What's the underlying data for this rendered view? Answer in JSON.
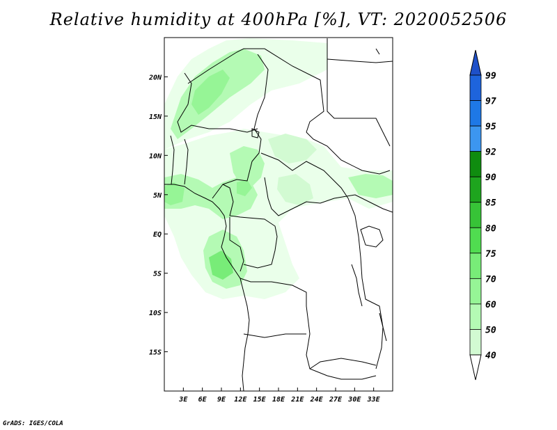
{
  "title": "Relative humidity at 400hPa [%], VT: 2020052506",
  "credit": "GrADS: IGES/COLA",
  "map": {
    "lon_range": [
      0,
      36
    ],
    "lat_range": [
      -20,
      25
    ],
    "lat_ticks": [
      {
        "value": 20,
        "label": "20N"
      },
      {
        "value": 15,
        "label": "15N"
      },
      {
        "value": 10,
        "label": "10N"
      },
      {
        "value": 5,
        "label": "5N"
      },
      {
        "value": 0,
        "label": "EQ"
      },
      {
        "value": -5,
        "label": "5S"
      },
      {
        "value": -10,
        "label": "10S"
      },
      {
        "value": -15,
        "label": "15S"
      }
    ],
    "lon_ticks": [
      {
        "value": 3,
        "label": "3E"
      },
      {
        "value": 6,
        "label": "6E"
      },
      {
        "value": 9,
        "label": "9E"
      },
      {
        "value": 12,
        "label": "12E"
      },
      {
        "value": 15,
        "label": "15E"
      },
      {
        "value": 18,
        "label": "18E"
      },
      {
        "value": 21,
        "label": "21E"
      },
      {
        "value": 24,
        "label": "24E"
      },
      {
        "value": 27,
        "label": "27E"
      },
      {
        "value": 30,
        "label": "30E"
      },
      {
        "value": 33,
        "label": "33E"
      }
    ]
  },
  "colorbar": {
    "levels": [
      {
        "label": "99",
        "color": "#1e64dc"
      },
      {
        "label": "97",
        "color": "#1e78e6"
      },
      {
        "label": "95",
        "color": "#3c96f0"
      },
      {
        "label": "92",
        "color": "#0f8c0f"
      },
      {
        "label": "90",
        "color": "#1ea51e"
      },
      {
        "label": "85",
        "color": "#37c337"
      },
      {
        "label": "80",
        "color": "#50dc50"
      },
      {
        "label": "75",
        "color": "#78ec78"
      },
      {
        "label": "70",
        "color": "#96f596"
      },
      {
        "label": "60",
        "color": "#b4fab4"
      },
      {
        "label": "50",
        "color": "#d2fad2"
      },
      {
        "label": "40",
        "color": "#eaffea"
      }
    ],
    "top_cap_color": "#1e50c8",
    "bottom_cap_color": "#ffffff"
  },
  "humidity_colors": {
    "c40": "#eaffea",
    "c50": "#d2fad2",
    "c60": "#b4fab4",
    "c70": "#96f596",
    "c75": "#78ec78"
  }
}
